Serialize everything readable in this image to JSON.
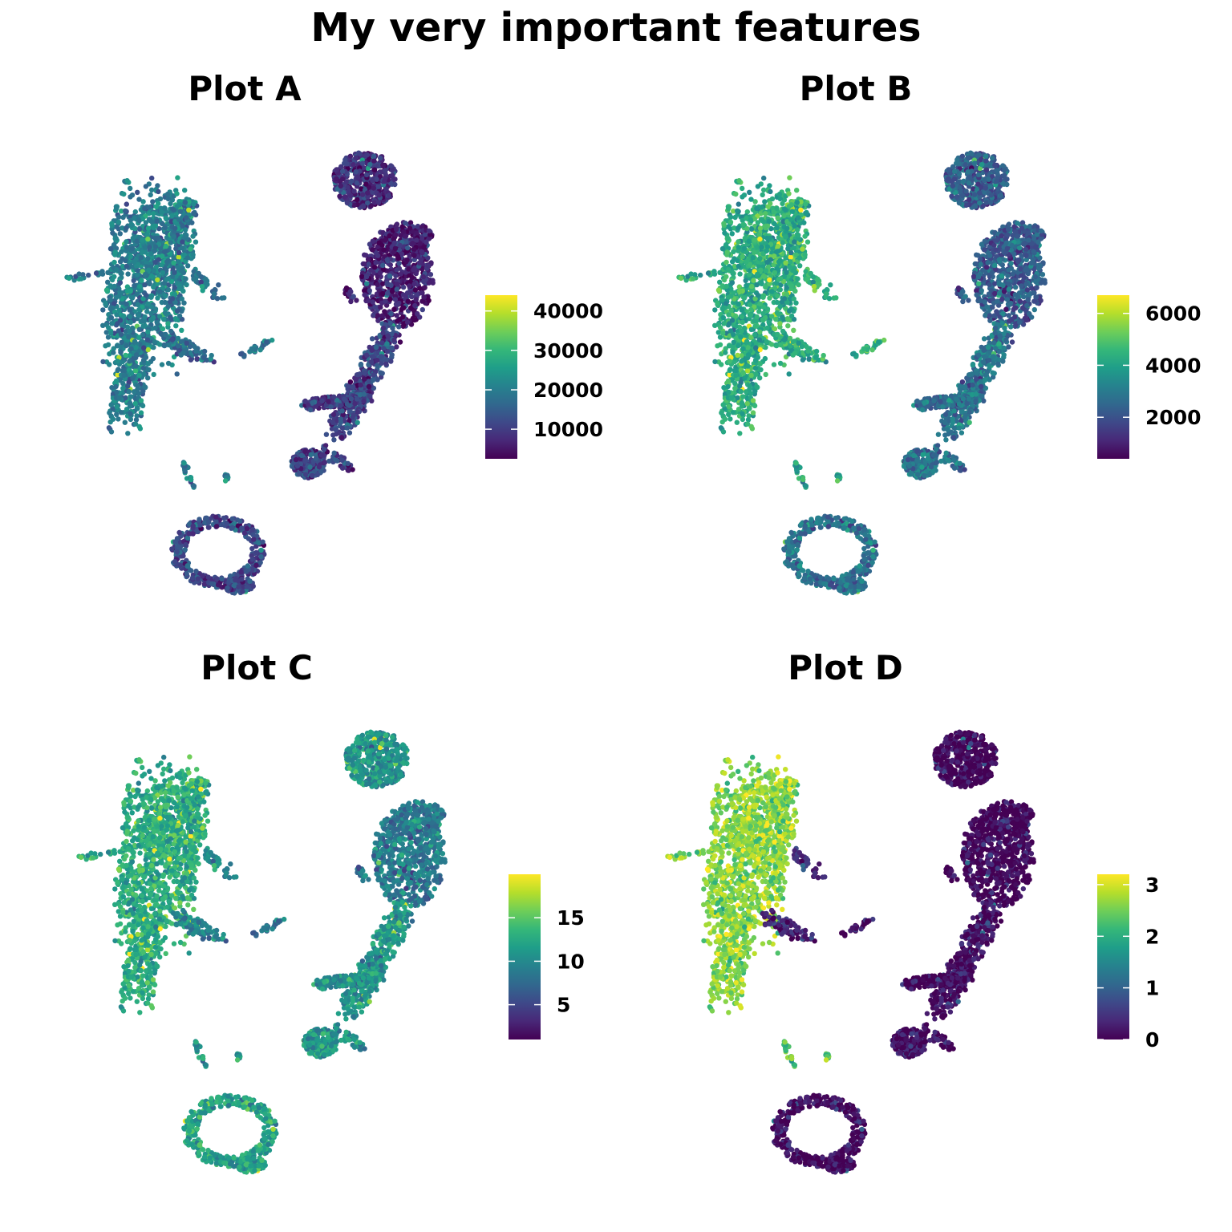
{
  "figure": {
    "title": "My very important features",
    "colormap": [
      "#440154",
      "#482878",
      "#3e4989",
      "#31688e",
      "#26828e",
      "#1f9e89",
      "#35b779",
      "#6ece58",
      "#b5de2b",
      "#fde725"
    ]
  },
  "chart_data": [
    {
      "type": "scatter",
      "title": "Plot A",
      "xlabel": "",
      "ylabel": "",
      "grid": false,
      "legend": "colorbar-right",
      "color_range": [
        2500,
        44000
      ],
      "color_ticks": [
        10000,
        20000,
        30000,
        40000
      ],
      "color_tick_labels": [
        "10000",
        "20000",
        "30000",
        "40000"
      ],
      "cluster_levels": {
        "left": 0.42,
        "topRight": 0.14,
        "right": 0.1,
        "tail": 0.2,
        "bottom": 0.22,
        "spur": 0.35,
        "islet": 0.4,
        "stub": 0.4
      }
    },
    {
      "type": "scatter",
      "title": "Plot B",
      "xlabel": "",
      "ylabel": "",
      "grid": false,
      "legend": "colorbar-right",
      "color_range": [
        400,
        6700
      ],
      "color_ticks": [
        2000,
        4000,
        6000
      ],
      "color_tick_labels": [
        "2000",
        "4000",
        "6000"
      ],
      "cluster_levels": {
        "left": 0.62,
        "topRight": 0.3,
        "right": 0.3,
        "tail": 0.38,
        "bottom": 0.38,
        "spur": 0.62,
        "islet": 0.65,
        "stub": 0.55
      }
    },
    {
      "type": "scatter",
      "title": "Plot C",
      "xlabel": "",
      "ylabel": "",
      "grid": false,
      "legend": "colorbar-right",
      "color_range": [
        1,
        20
      ],
      "color_ticks": [
        5,
        10,
        15
      ],
      "color_tick_labels": [
        "5",
        "10",
        "15"
      ],
      "cluster_levels": {
        "left": 0.62,
        "topRight": 0.52,
        "right": 0.42,
        "tail": 0.52,
        "bottom": 0.58,
        "spur": 0.45,
        "islet": 0.4,
        "stub": 0.5
      }
    },
    {
      "type": "scatter",
      "title": "Plot D",
      "xlabel": "",
      "ylabel": "",
      "grid": false,
      "legend": "colorbar-right",
      "color_range": [
        0,
        3.2
      ],
      "color_ticks": [
        0,
        1,
        2,
        3
      ],
      "color_tick_labels": [
        "0",
        "1",
        "2",
        "3"
      ],
      "cluster_levels": {
        "left": 0.82,
        "topRight": 0.02,
        "right": 0.03,
        "tail": 0.05,
        "bottom": 0.05,
        "spur": 0.1,
        "islet": 0.05,
        "stub": 0.7
      }
    }
  ]
}
